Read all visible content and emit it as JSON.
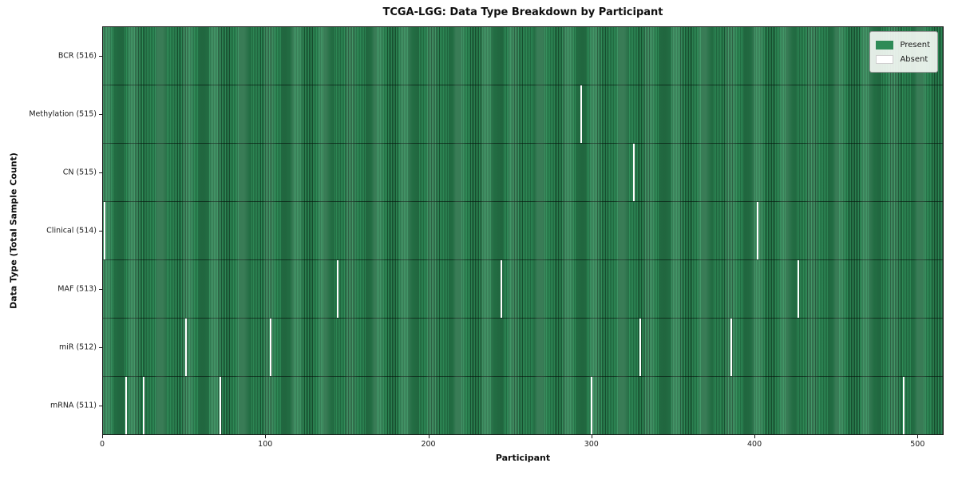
{
  "chart_data": {
    "type": "heatmap",
    "title": "TCGA-LGG: Data Type Breakdown by Participant",
    "xlabel": "Participant",
    "ylabel": "Data Type (Total Sample Count)",
    "xlim": [
      0,
      516
    ],
    "x_ticks": [
      0,
      100,
      200,
      300,
      400,
      500
    ],
    "n_participants": 516,
    "grid": false,
    "legend_position": "upper-right",
    "legend": [
      {
        "key": "present",
        "label": "Present",
        "color": "#2e8b57"
      },
      {
        "key": "absent",
        "label": "Absent",
        "color": "#ffffff"
      }
    ],
    "colors": {
      "present": "#2e8b57",
      "present_edge": "#174f2f",
      "absent": "#ffffff"
    },
    "rows": [
      {
        "key": "bcr",
        "label": "BCR (516)",
        "data_type": "BCR",
        "present_count": 516,
        "absent_count": 0,
        "absent_participants": []
      },
      {
        "key": "methylation",
        "label": "Methylation (515)",
        "data_type": "Methylation",
        "present_count": 515,
        "absent_count": 1,
        "absent_participants": [
          294
        ]
      },
      {
        "key": "cn",
        "label": "CN (515)",
        "data_type": "CN",
        "present_count": 515,
        "absent_count": 1,
        "absent_participants": [
          326
        ]
      },
      {
        "key": "clinical",
        "label": "Clinical (514)",
        "data_type": "Clinical",
        "present_count": 514,
        "absent_count": 2,
        "absent_participants": [
          1,
          402
        ]
      },
      {
        "key": "maf",
        "label": "MAF (513)",
        "data_type": "MAF",
        "present_count": 513,
        "absent_count": 3,
        "absent_participants": [
          144,
          245,
          427
        ]
      },
      {
        "key": "mir",
        "label": "miR (512)",
        "data_type": "miR",
        "present_count": 512,
        "absent_count": 4,
        "absent_participants": [
          51,
          103,
          330,
          386
        ]
      },
      {
        "key": "mrna",
        "label": "mRNA (511)",
        "data_type": "mRNA",
        "present_count": 511,
        "absent_count": 5,
        "absent_participants": [
          14,
          25,
          72,
          300,
          492
        ]
      }
    ]
  }
}
